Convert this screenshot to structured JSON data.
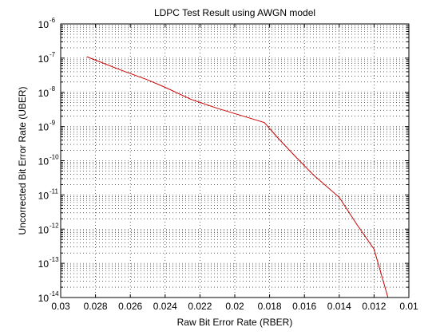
{
  "chart_data": {
    "type": "line",
    "title": "LDPC Test Result using AWGN model",
    "xlabel": "Raw Bit Error Rate (RBER)",
    "ylabel": "Uncorrected Bit Error Rate (UBER)",
    "xlim": [
      0.03,
      0.01
    ],
    "x_reversed": true,
    "ylim": [
      1e-14,
      1e-06
    ],
    "yscale": "log",
    "grid": true,
    "x_ticks": [
      "0.03",
      "0.028",
      "0.026",
      "0.024",
      "0.022",
      "0.02",
      "0.018",
      "0.016",
      "0.014",
      "0.012",
      "0.01"
    ],
    "y_ticks": [
      {
        "base": "10",
        "exp": "-14"
      },
      {
        "base": "10",
        "exp": "-13"
      },
      {
        "base": "10",
        "exp": "-12"
      },
      {
        "base": "10",
        "exp": "-11"
      },
      {
        "base": "10",
        "exp": "-10"
      },
      {
        "base": "10",
        "exp": "-9"
      },
      {
        "base": "10",
        "exp": "-8"
      },
      {
        "base": "10",
        "exp": "-7"
      },
      {
        "base": "10",
        "exp": "-6"
      }
    ],
    "series": [
      {
        "color": "#cc0000",
        "x": [
          0.0285,
          0.0265,
          0.025,
          0.024,
          0.0225,
          0.021,
          0.0195,
          0.0183,
          0.0175,
          0.0165,
          0.0155,
          0.014,
          0.013,
          0.012,
          0.0112
        ],
        "y": [
          1.1e-07,
          4.4e-08,
          2.3e-08,
          1.4e-08,
          6.2e-09,
          3.4e-09,
          2e-09,
          1.3e-09,
          4.5e-10,
          1.3e-10,
          3.9e-11,
          8.5e-12,
          1.4e-12,
          2.6e-13,
          1e-14
        ]
      }
    ]
  }
}
